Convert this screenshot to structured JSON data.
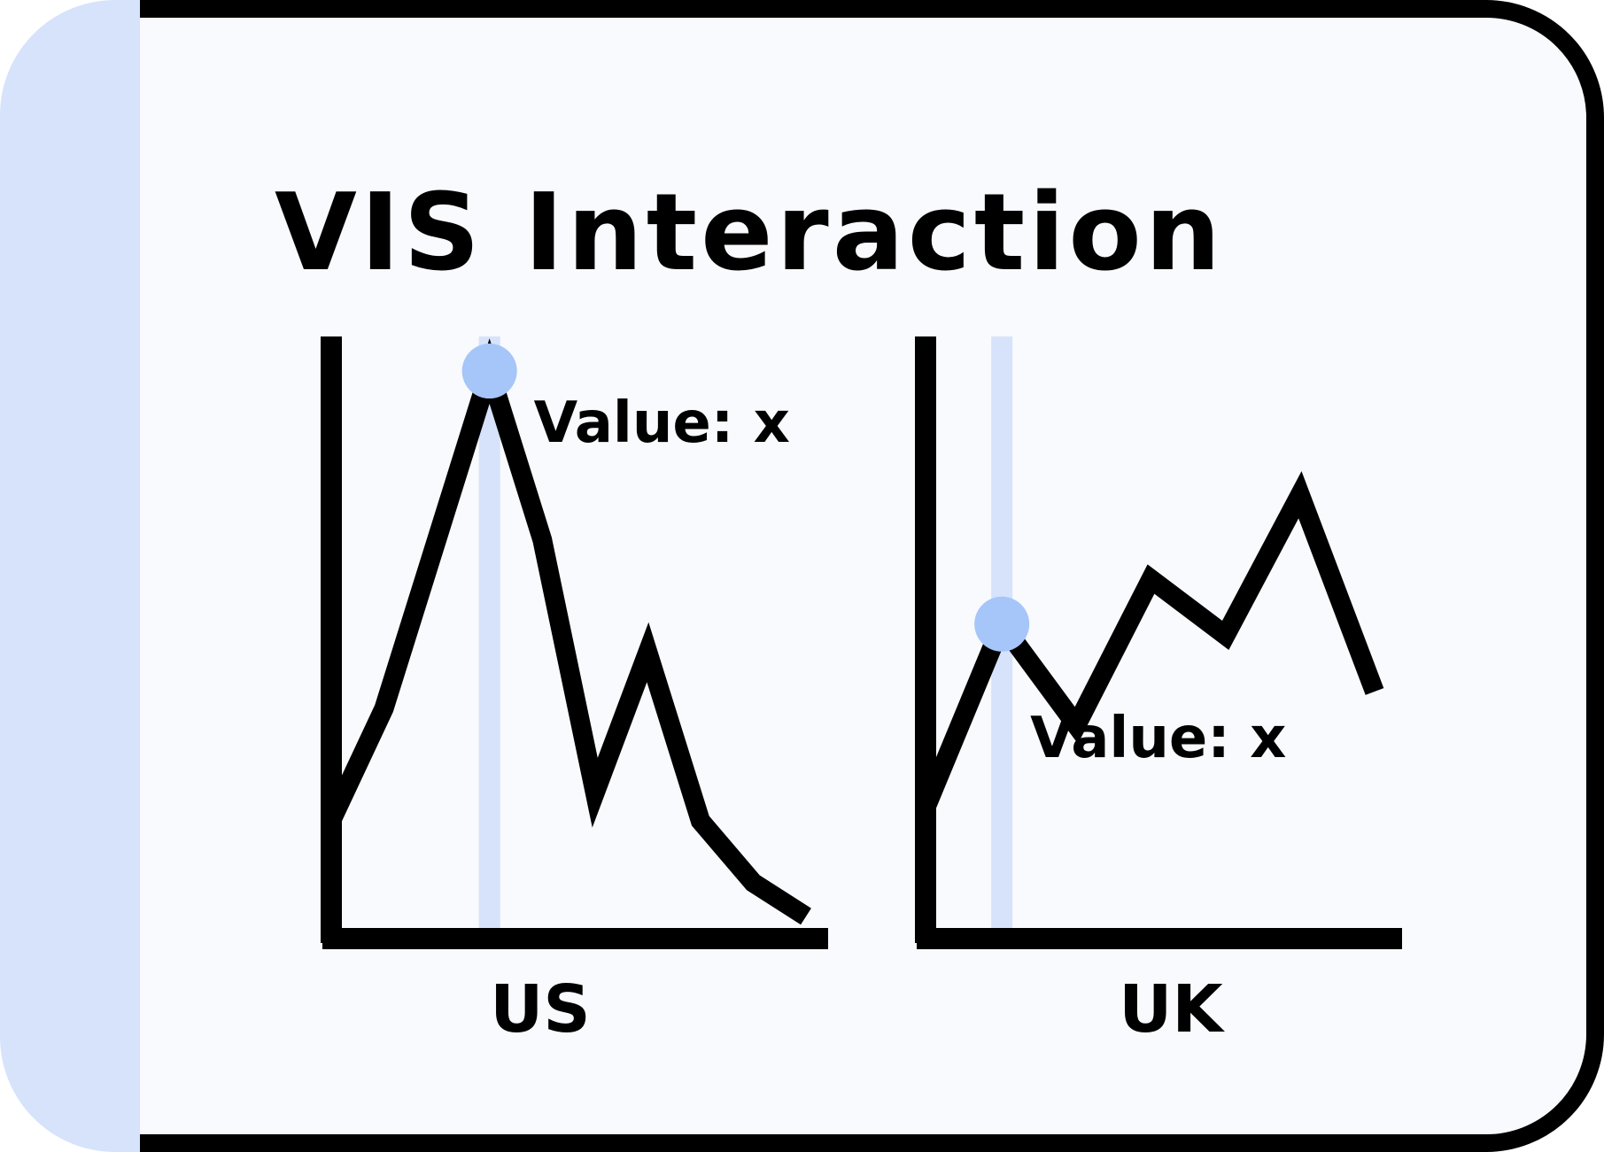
{
  "title": "VIS Interaction",
  "colors": {
    "outline": "#000000",
    "panel_fill": "#f8fafd",
    "side_band": "#d6e3fb",
    "hover_rule": "#d6e3fb",
    "hover_marker": "#a6c5f9"
  },
  "charts": [
    {
      "label": "US",
      "tooltip": "Value: x"
    },
    {
      "label": "UK",
      "tooltip": "Value: x"
    }
  ],
  "chart_data": [
    {
      "type": "line",
      "title": "",
      "xlabel": "US",
      "ylabel": "",
      "x": [
        0,
        1,
        2,
        3,
        4,
        5,
        6,
        7,
        8,
        9
      ],
      "values": [
        17,
        37,
        67,
        97,
        67,
        22,
        47,
        17,
        6,
        0
      ],
      "ylim": [
        0,
        100
      ],
      "hover": {
        "x": 3,
        "label": "Value: x"
      },
      "grid": false
    },
    {
      "type": "line",
      "title": "",
      "xlabel": "UK",
      "ylabel": "",
      "x": [
        0,
        1,
        2,
        3,
        4,
        5,
        6
      ],
      "values": [
        20,
        52,
        34,
        60,
        50,
        75,
        40
      ],
      "ylim": [
        0,
        100
      ],
      "hover": {
        "x": 1,
        "label": "Value: x"
      },
      "grid": false
    }
  ]
}
